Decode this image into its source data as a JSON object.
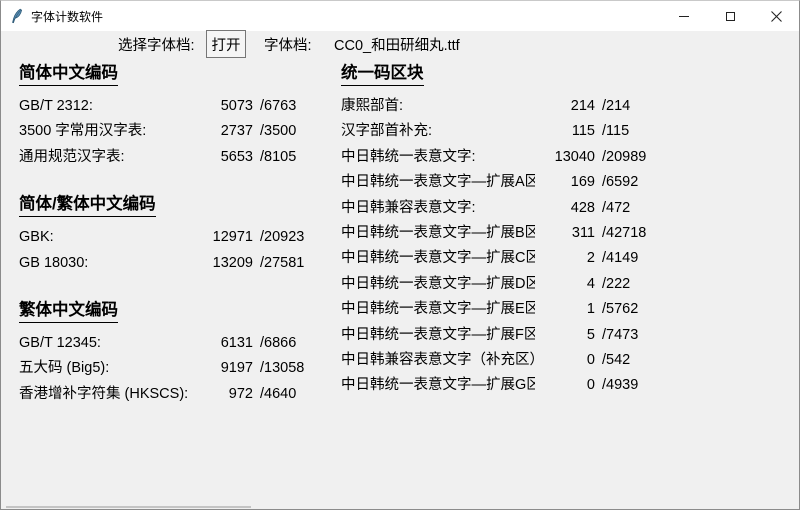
{
  "window": {
    "title": "字体计数软件"
  },
  "toolbar": {
    "select_label": "选择字体档:",
    "open_button": "打开",
    "file_label": "字体档:",
    "file_name": "CC0_和田研细丸.ttf"
  },
  "left_column": {
    "sections": [
      {
        "heading": "简体中文编码",
        "rows": [
          {
            "label": "GB/T 2312:",
            "count": "5073",
            "total": "/6763"
          },
          {
            "label": "3500 字常用汉字表:",
            "count": "2737",
            "total": "/3500"
          },
          {
            "label": "通用规范汉字表:",
            "count": "5653",
            "total": "/8105"
          }
        ]
      },
      {
        "heading": "简体/繁体中文编码",
        "rows": [
          {
            "label": "GBK:",
            "count": "12971",
            "total": "/20923"
          },
          {
            "label": "GB 18030:",
            "count": "13209",
            "total": "/27581"
          }
        ]
      },
      {
        "heading": "繁体中文编码",
        "rows": [
          {
            "label": "GB/T 12345:",
            "count": "6131",
            "total": "/6866"
          },
          {
            "label": "五大码 (Big5):",
            "count": "9197",
            "total": "/13058"
          },
          {
            "label": "香港增补字符集 (HKSCS):",
            "count": "972",
            "total": "/4640"
          }
        ]
      }
    ]
  },
  "right_column": {
    "sections": [
      {
        "heading": "统一码区块",
        "rows": [
          {
            "label": "康熙部首:",
            "count": "214",
            "total": "/214"
          },
          {
            "label": "汉字部首补充:",
            "count": "115",
            "total": "/115"
          },
          {
            "label": "中日韩统一表意文字:",
            "count": "13040",
            "total": "/20989"
          },
          {
            "label": "中日韩统一表意文字—扩展A区:",
            "count": "169",
            "total": "/6592"
          },
          {
            "label": "中日韩兼容表意文字:",
            "count": "428",
            "total": "/472"
          },
          {
            "label": "中日韩统一表意文字—扩展B区:",
            "count": "311",
            "total": "/42718"
          },
          {
            "label": "中日韩统一表意文字—扩展C区:",
            "count": "2",
            "total": "/4149"
          },
          {
            "label": "中日韩统一表意文字—扩展D区:",
            "count": "4",
            "total": "/222"
          },
          {
            "label": "中日韩统一表意文字—扩展E区:",
            "count": "1",
            "total": "/5762"
          },
          {
            "label": "中日韩统一表意文字—扩展F区:",
            "count": "5",
            "total": "/7473"
          },
          {
            "label": "中日韩兼容表意文字（补充区）:",
            "count": "0",
            "total": "/542"
          },
          {
            "label": "中日韩统一表意文字—扩展G区:",
            "count": "0",
            "total": "/4939"
          }
        ]
      }
    ]
  }
}
